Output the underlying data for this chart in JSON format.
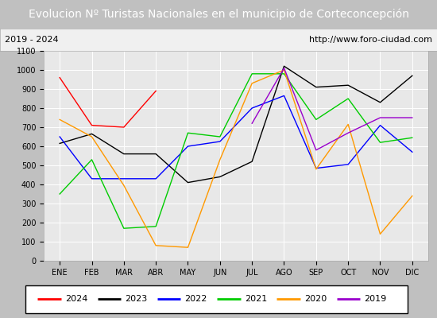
{
  "title": "Evolucion Nº Turistas Nacionales en el municipio de Corteconcepción",
  "subtitle_left": "2019 - 2024",
  "subtitle_right": "http://www.foro-ciudad.com",
  "x_labels": [
    "ENE",
    "FEB",
    "MAR",
    "ABR",
    "MAY",
    "JUN",
    "JUL",
    "AGO",
    "SEP",
    "OCT",
    "NOV",
    "DIC"
  ],
  "ylim": [
    0,
    1100
  ],
  "yticks": [
    0,
    100,
    200,
    300,
    400,
    500,
    600,
    700,
    800,
    900,
    1000,
    1100
  ],
  "series": {
    "2024": {
      "color": "#ff0000",
      "data": [
        960,
        710,
        700,
        890,
        null,
        null,
        null,
        null,
        null,
        null,
        null,
        null
      ]
    },
    "2023": {
      "color": "#000000",
      "data": [
        615,
        665,
        560,
        560,
        410,
        440,
        520,
        1020,
        910,
        920,
        830,
        970
      ]
    },
    "2022": {
      "color": "#0000ff",
      "data": [
        650,
        430,
        430,
        430,
        600,
        625,
        800,
        865,
        485,
        505,
        710,
        570
      ]
    },
    "2021": {
      "color": "#00cc00",
      "data": [
        350,
        530,
        170,
        180,
        670,
        650,
        980,
        980,
        740,
        850,
        620,
        645
      ]
    },
    "2020": {
      "color": "#ff9900",
      "data": [
        740,
        650,
        395,
        80,
        70,
        530,
        930,
        1000,
        480,
        715,
        140,
        340
      ]
    },
    "2019": {
      "color": "#9900cc",
      "data": [
        null,
        null,
        null,
        null,
        null,
        null,
        720,
        1010,
        580,
        670,
        750,
        750
      ]
    }
  },
  "title_bg_color": "#4472c4",
  "title_color": "#ffffff",
  "plot_bg_color": "#e8e8e8",
  "grid_color": "#ffffff",
  "subtitle_bg_color": "#e8e8e8",
  "subtitle_fontsize": 8,
  "title_fontsize": 10,
  "tick_fontsize": 7,
  "legend_fontsize": 8
}
